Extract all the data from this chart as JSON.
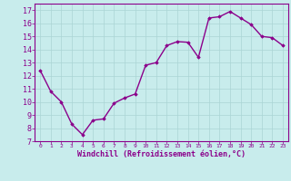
{
  "x": [
    0,
    1,
    2,
    3,
    4,
    5,
    6,
    7,
    8,
    9,
    10,
    11,
    12,
    13,
    14,
    15,
    16,
    17,
    18,
    19,
    20,
    21,
    22,
    23
  ],
  "y": [
    12.4,
    10.8,
    10.0,
    8.3,
    7.5,
    8.6,
    8.7,
    9.9,
    10.3,
    10.6,
    12.8,
    13.0,
    14.3,
    14.6,
    14.55,
    13.4,
    16.4,
    16.5,
    16.9,
    16.4,
    15.9,
    15.0,
    14.9,
    14.3
  ],
  "line_color": "#8b008b",
  "marker": "D",
  "marker_size": 1.8,
  "background_color": "#c8ecec",
  "grid_color": "#aad4d4",
  "xlabel": "Windchill (Refroidissement éolien,°C)",
  "xlabel_color": "#8b008b",
  "ylabel_ticks": [
    7,
    8,
    9,
    10,
    11,
    12,
    13,
    14,
    15,
    16,
    17
  ],
  "xlim": [
    -0.5,
    23.5
  ],
  "ylim": [
    7,
    17.5
  ],
  "xtick_labels": [
    "0",
    "1",
    "2",
    "3",
    "4",
    "5",
    "6",
    "7",
    "8",
    "9",
    "10",
    "11",
    "12",
    "13",
    "14",
    "15",
    "16",
    "17",
    "18",
    "19",
    "20",
    "21",
    "22",
    "23"
  ],
  "tick_color": "#8b008b",
  "axis_color": "#8b008b",
  "line_width": 1.0,
  "xlabel_fontsize": 6.0,
  "ytick_fontsize": 6.0,
  "xtick_fontsize": 4.5
}
